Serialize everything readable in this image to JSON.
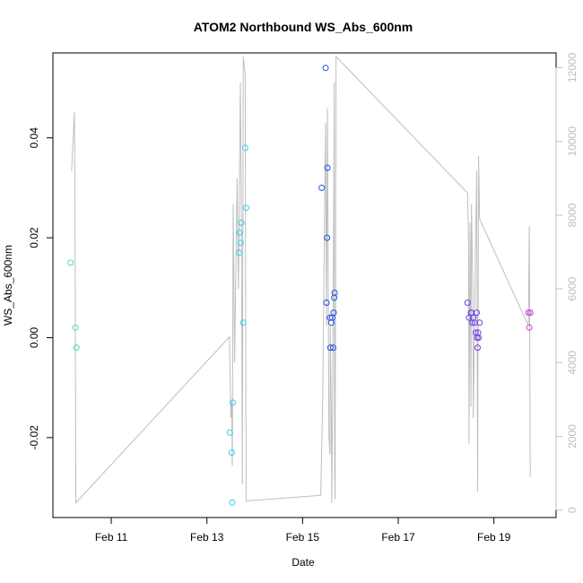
{
  "chart_data": {
    "type": "scatter",
    "title": "ATOM2 Northbound WS_Abs_600nm",
    "xlabel": "Date",
    "ylabel": "WS_Abs_600nm",
    "x_ticks": [
      {
        "label": "Feb 11",
        "value": 11
      },
      {
        "label": "Feb 13",
        "value": 13
      },
      {
        "label": "Feb 15",
        "value": 15
      },
      {
        "label": "Feb 17",
        "value": 17
      },
      {
        "label": "Feb 19",
        "value": 19
      }
    ],
    "xlim": [
      9.78,
      20.3
    ],
    "ylim": [
      -0.036,
      0.057
    ],
    "y_ticks": [
      -0.02,
      0.0,
      0.02,
      0.04
    ],
    "y_tick_labels": [
      "-0.02",
      "0.00",
      "0.02",
      "0.04"
    ],
    "y2lim": [
      -200,
      12400
    ],
    "y2_ticks": [
      0,
      2000,
      4000,
      6000,
      8000,
      10000,
      12000
    ],
    "y2_tick_labels": [
      "0",
      "2000",
      "4000",
      "6000",
      "8000",
      "10000",
      "12000"
    ],
    "grid": false,
    "colors": {
      "line": "#bebebe",
      "axis": "#000000",
      "seg1": "#40e0b0",
      "seg2": "#30d0e8",
      "seg3": "#2050e0",
      "seg4": "#7040e8",
      "seg5": "#d040e0"
    },
    "points": [
      {
        "x": 10.15,
        "y": 0.015,
        "c": "seg1"
      },
      {
        "x": 10.25,
        "y": 0.002,
        "c": "seg1"
      },
      {
        "x": 10.27,
        "y": -0.002,
        "c": "seg1"
      },
      {
        "x": 13.48,
        "y": -0.019,
        "c": "seg2"
      },
      {
        "x": 13.52,
        "y": -0.023,
        "c": "seg2"
      },
      {
        "x": 13.54,
        "y": -0.013,
        "c": "seg2"
      },
      {
        "x": 13.53,
        "y": -0.033,
        "c": "seg2"
      },
      {
        "x": 13.67,
        "y": 0.017,
        "c": "seg2"
      },
      {
        "x": 13.68,
        "y": 0.021,
        "c": "seg2"
      },
      {
        "x": 13.71,
        "y": 0.019,
        "c": "seg2"
      },
      {
        "x": 13.72,
        "y": 0.023,
        "c": "seg2"
      },
      {
        "x": 13.76,
        "y": 0.003,
        "c": "seg2"
      },
      {
        "x": 13.8,
        "y": 0.038,
        "c": "seg2"
      },
      {
        "x": 13.82,
        "y": 0.026,
        "c": "seg2"
      },
      {
        "x": 15.4,
        "y": 0.03,
        "c": "seg3"
      },
      {
        "x": 15.48,
        "y": 0.054,
        "c": "seg3"
      },
      {
        "x": 15.5,
        "y": 0.007,
        "c": "seg3"
      },
      {
        "x": 15.51,
        "y": 0.02,
        "c": "seg3"
      },
      {
        "x": 15.52,
        "y": 0.034,
        "c": "seg3"
      },
      {
        "x": 15.57,
        "y": 0.004,
        "c": "seg3"
      },
      {
        "x": 15.58,
        "y": -0.002,
        "c": "seg3"
      },
      {
        "x": 15.6,
        "y": 0.003,
        "c": "seg3"
      },
      {
        "x": 15.62,
        "y": 0.004,
        "c": "seg3"
      },
      {
        "x": 15.64,
        "y": -0.002,
        "c": "seg3"
      },
      {
        "x": 15.65,
        "y": 0.005,
        "c": "seg3"
      },
      {
        "x": 15.66,
        "y": 0.008,
        "c": "seg3"
      },
      {
        "x": 15.67,
        "y": 0.009,
        "c": "seg3"
      },
      {
        "x": 18.45,
        "y": 0.007,
        "c": "seg4"
      },
      {
        "x": 18.48,
        "y": 0.004,
        "c": "seg4"
      },
      {
        "x": 18.52,
        "y": 0.005,
        "c": "seg4"
      },
      {
        "x": 18.53,
        "y": 0.005,
        "c": "seg4"
      },
      {
        "x": 18.55,
        "y": 0.003,
        "c": "seg4"
      },
      {
        "x": 18.57,
        "y": 0.004,
        "c": "seg4"
      },
      {
        "x": 18.6,
        "y": 0.003,
        "c": "seg4"
      },
      {
        "x": 18.62,
        "y": 0.001,
        "c": "seg4"
      },
      {
        "x": 18.64,
        "y": 0.005,
        "c": "seg4"
      },
      {
        "x": 18.65,
        "y": 0.0,
        "c": "seg4"
      },
      {
        "x": 18.66,
        "y": -0.002,
        "c": "seg4"
      },
      {
        "x": 18.67,
        "y": 0.001,
        "c": "seg4"
      },
      {
        "x": 18.68,
        "y": 0.0,
        "c": "seg4"
      },
      {
        "x": 18.7,
        "y": 0.003,
        "c": "seg4"
      },
      {
        "x": 19.72,
        "y": 0.005,
        "c": "seg5"
      },
      {
        "x": 19.76,
        "y": 0.005,
        "c": "seg5"
      },
      {
        "x": 19.74,
        "y": 0.002,
        "c": "seg5"
      }
    ],
    "line_series": [
      [
        10.17,
        9200
      ],
      [
        10.23,
        10800
      ],
      [
        10.24,
        8900
      ],
      [
        10.26,
        200
      ],
      [
        13.47,
        4700
      ],
      [
        13.5,
        2500
      ],
      [
        13.52,
        3000
      ],
      [
        13.53,
        1200
      ],
      [
        13.55,
        8300
      ],
      [
        13.58,
        4000
      ],
      [
        13.63,
        9000
      ],
      [
        13.66,
        6000
      ],
      [
        13.7,
        11600
      ],
      [
        13.72,
        8000
      ],
      [
        13.74,
        700
      ],
      [
        13.76,
        12300
      ],
      [
        13.8,
        11800
      ],
      [
        13.82,
        250
      ],
      [
        15.38,
        400
      ],
      [
        15.42,
        3000
      ],
      [
        15.45,
        7000
      ],
      [
        15.48,
        10500
      ],
      [
        15.5,
        5000
      ],
      [
        15.52,
        10900
      ],
      [
        15.55,
        2000
      ],
      [
        15.57,
        1500
      ],
      [
        15.58,
        5000
      ],
      [
        15.6,
        2500
      ],
      [
        15.61,
        200
      ],
      [
        15.63,
        3500
      ],
      [
        15.65,
        8000
      ],
      [
        15.66,
        11600
      ],
      [
        15.67,
        900
      ],
      [
        15.68,
        300
      ],
      [
        15.7,
        12300
      ],
      [
        18.45,
        8600
      ],
      [
        18.47,
        7300
      ],
      [
        18.48,
        1800
      ],
      [
        18.5,
        7800
      ],
      [
        18.52,
        2800
      ],
      [
        18.53,
        8300
      ],
      [
        18.56,
        6000
      ],
      [
        18.57,
        2500
      ],
      [
        18.6,
        5500
      ],
      [
        18.62,
        7500
      ],
      [
        18.64,
        9200
      ],
      [
        18.66,
        500
      ],
      [
        18.68,
        9600
      ],
      [
        18.7,
        7900
      ],
      [
        19.72,
        5000
      ],
      [
        19.74,
        7700
      ],
      [
        19.76,
        900
      ]
    ]
  }
}
